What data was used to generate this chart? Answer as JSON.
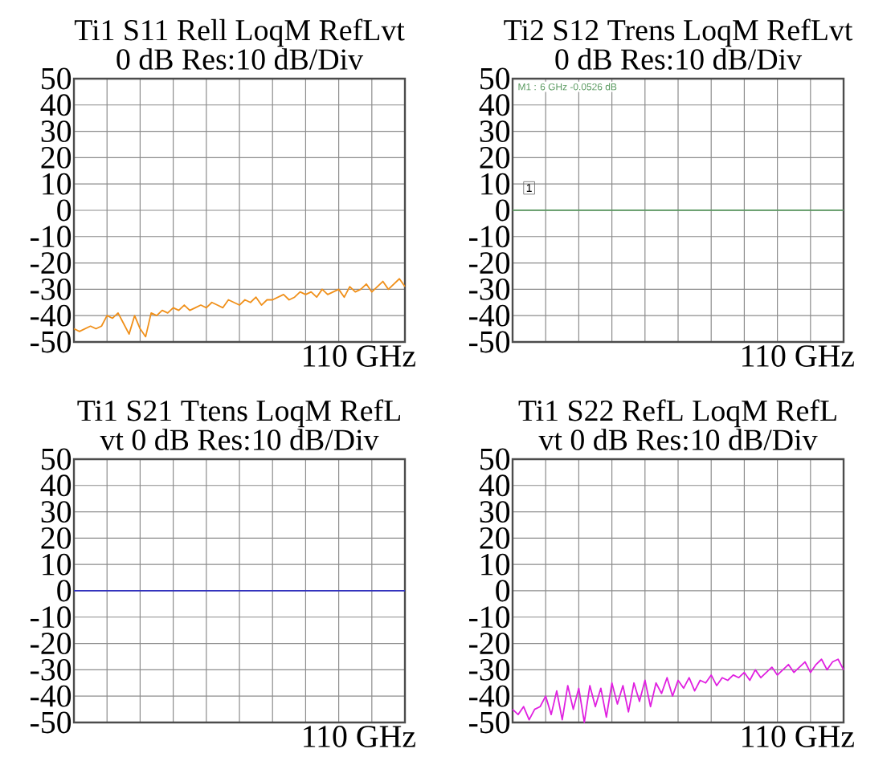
{
  "chart_data": [
    {
      "type": "line",
      "title": "Ti1 S11 Rell LoqM RefLvt",
      "subtitle": "0 dB Res:10 dB/Div",
      "categories": [
        null,
        null,
        null,
        null,
        null,
        null,
        null,
        null,
        null,
        null,
        null,
        null,
        null,
        null,
        null,
        null,
        null,
        null,
        null,
        null,
        null,
        null,
        null,
        null,
        null,
        null,
        null,
        null,
        null,
        null,
        null,
        null,
        null,
        null,
        null,
        null,
        null,
        null,
        null,
        null,
        null,
        null,
        null,
        null,
        null,
        null,
        null,
        null,
        null,
        null,
        null,
        null,
        null,
        null,
        null,
        null,
        null,
        null,
        null,
        null,
        null
      ],
      "series": [
        {
          "color": "#f0901a",
          "values": [
            -45,
            -46,
            -45,
            -44,
            -45,
            -44,
            -40,
            -41,
            -39,
            -43,
            -47,
            -40,
            -45,
            -48,
            -39,
            -40,
            -38,
            -39,
            -37,
            -38,
            -36,
            -38,
            -37,
            -36,
            -37,
            -35,
            -36,
            -37,
            -34,
            -35,
            -36,
            -34,
            -35,
            -33,
            -36,
            -34,
            -34,
            -33,
            -32,
            -34,
            -33,
            -31,
            -32,
            -31,
            -33,
            -30,
            -32,
            -31,
            -30,
            -33,
            -29,
            -31,
            -30,
            -28,
            -31,
            -29,
            -27,
            -30,
            -28,
            -26,
            -29
          ]
        }
      ],
      "ylim": [
        -50,
        50
      ],
      "yticks": [
        -50,
        -40,
        -30,
        -20,
        -10,
        0,
        10,
        20,
        30,
        40,
        50
      ],
      "grid": true,
      "tick_labels": "y",
      "annotations": [
        "110 GHz"
      ]
    },
    {
      "type": "line",
      "title": "Ti2 S12 Trens LoqM RefLvt",
      "subtitle": "0 dB Res:10 dB/Div",
      "categories": [
        null,
        null,
        null,
        null,
        null,
        null,
        null,
        null,
        null,
        null,
        null,
        null,
        null,
        null,
        null,
        null,
        null,
        null,
        null,
        null,
        null,
        null,
        null,
        null,
        null,
        null,
        null,
        null,
        null,
        null,
        null,
        null,
        null,
        null,
        null,
        null,
        null,
        null,
        null,
        null,
        null,
        null,
        null,
        null,
        null,
        null,
        null,
        null,
        null,
        null,
        null,
        null,
        null,
        null,
        null,
        null,
        null,
        null,
        null,
        null,
        null
      ],
      "series": [
        {
          "color": "#5a9a60",
          "values": [
            0,
            0,
            0,
            0,
            0,
            0,
            0,
            0,
            0,
            0,
            0,
            0,
            0,
            0,
            0,
            0,
            0,
            0,
            0,
            0,
            0,
            0,
            0,
            0,
            0,
            0,
            0,
            0,
            0,
            0,
            0,
            0,
            0,
            0,
            0,
            0,
            0,
            0,
            0,
            0,
            0,
            0,
            0,
            0,
            0,
            0,
            0,
            0,
            0,
            0,
            0,
            0,
            0,
            0,
            0,
            0,
            0,
            0,
            0,
            0,
            0
          ]
        }
      ],
      "ylim": [
        -50,
        50
      ],
      "yticks": [
        -50,
        -40,
        -30,
        -20,
        -10,
        0,
        10,
        20,
        30,
        40,
        50
      ],
      "grid": true,
      "tick_labels": "y",
      "annotations": [
        "110 GHz",
        "M1 : 6 GHz -0.0526 dB",
        "1"
      ]
    },
    {
      "type": "line",
      "title": "Ti1 S21 Ttens LoqM RefL",
      "subtitle": "vt 0 dB Res:10 dB/Div",
      "categories": [
        null,
        null,
        null,
        null,
        null,
        null,
        null,
        null,
        null,
        null,
        null,
        null,
        null,
        null,
        null,
        null,
        null,
        null,
        null,
        null,
        null,
        null,
        null,
        null,
        null,
        null,
        null,
        null,
        null,
        null,
        null,
        null,
        null,
        null,
        null,
        null,
        null,
        null,
        null,
        null,
        null,
        null,
        null,
        null,
        null,
        null,
        null,
        null,
        null,
        null,
        null,
        null,
        null,
        null,
        null,
        null,
        null,
        null,
        null,
        null,
        null
      ],
      "series": [
        {
          "color": "#3030c0",
          "values": [
            0,
            0,
            0,
            0,
            0,
            0,
            0,
            0,
            0,
            0,
            0,
            0,
            0,
            0,
            0,
            0,
            0,
            0,
            0,
            0,
            0,
            0,
            0,
            0,
            0,
            0,
            0,
            0,
            0,
            0,
            0,
            0,
            0,
            0,
            0,
            0,
            0,
            0,
            0,
            0,
            0,
            0,
            0,
            0,
            0,
            0,
            0,
            0,
            0,
            0,
            0,
            0,
            0,
            0,
            0,
            0,
            0,
            0,
            0,
            0,
            0
          ]
        }
      ],
      "ylim": [
        -50,
        50
      ],
      "yticks": [
        -50,
        -40,
        -30,
        -20,
        -10,
        0,
        10,
        20,
        30,
        40,
        50
      ],
      "grid": true,
      "tick_labels": "y",
      "annotations": [
        "110 GHz"
      ]
    },
    {
      "type": "line",
      "title": "Ti1 S22 RefL LoqM RefL",
      "subtitle": "vt 0 dB Res:10 dB/Div",
      "categories": [
        null,
        null,
        null,
        null,
        null,
        null,
        null,
        null,
        null,
        null,
        null,
        null,
        null,
        null,
        null,
        null,
        null,
        null,
        null,
        null,
        null,
        null,
        null,
        null,
        null,
        null,
        null,
        null,
        null,
        null,
        null,
        null,
        null,
        null,
        null,
        null,
        null,
        null,
        null,
        null,
        null,
        null,
        null,
        null,
        null,
        null,
        null,
        null,
        null,
        null,
        null,
        null,
        null,
        null,
        null,
        null,
        null,
        null,
        null,
        null,
        null
      ],
      "series": [
        {
          "color": "#e020e0",
          "values": [
            -45,
            -47,
            -44,
            -49,
            -45,
            -44,
            -40,
            -47,
            -38,
            -49,
            -36,
            -45,
            -37,
            -50,
            -36,
            -44,
            -37,
            -48,
            -35,
            -43,
            -36,
            -46,
            -35,
            -42,
            -34,
            -44,
            -35,
            -39,
            -33,
            -40,
            -34,
            -37,
            -33,
            -38,
            -34,
            -35,
            -32,
            -36,
            -33,
            -34,
            -32,
            -33,
            -31,
            -34,
            -30,
            -33,
            -31,
            -29,
            -32,
            -30,
            -28,
            -31,
            -29,
            -27,
            -31,
            -28,
            -26,
            -30,
            -27,
            -26,
            -30
          ]
        }
      ],
      "ylim": [
        -50,
        50
      ],
      "yticks": [
        -50,
        -40,
        -30,
        -20,
        -10,
        0,
        10,
        20,
        30,
        40,
        50
      ],
      "grid": true,
      "tick_labels": "y",
      "annotations": [
        "110 GHz"
      ]
    }
  ]
}
